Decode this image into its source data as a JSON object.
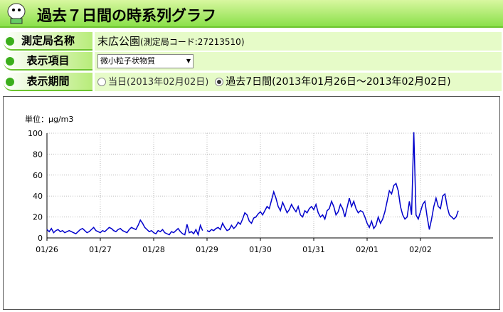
{
  "header": {
    "title": "過去７日間の時系列グラフ"
  },
  "form": {
    "station_label": "測定局名称",
    "station_name": "末広公園",
    "station_code": "(測定局コード:27213510)",
    "item_label": "表示項目",
    "item_value": "微小粒子状物質",
    "period_label": "表示期間",
    "period_today": "当日(2013年02月02日)",
    "period_week": "過去7日間(2013年01月26日～2013年02月02日)"
  },
  "chart_data": {
    "type": "line",
    "ylabel": "単位：μg/m3",
    "color": "#0000cc",
    "grid": true,
    "ylim": [
      0,
      100
    ],
    "yticks": [
      0,
      20,
      40,
      60,
      80,
      100
    ],
    "categories": [
      "01/26",
      null,
      null,
      null,
      null,
      null,
      null,
      null,
      null,
      null,
      null,
      null,
      null,
      null,
      null,
      null,
      null,
      null,
      null,
      null,
      null,
      null,
      null,
      null,
      "01/27",
      null,
      null,
      null,
      null,
      null,
      null,
      null,
      null,
      null,
      null,
      null,
      null,
      null,
      null,
      null,
      null,
      null,
      null,
      null,
      null,
      null,
      null,
      null,
      "01/28",
      null,
      null,
      null,
      null,
      null,
      null,
      null,
      null,
      null,
      null,
      null,
      null,
      null,
      null,
      null,
      null,
      null,
      null,
      null,
      null,
      null,
      null,
      null,
      "01/29",
      null,
      null,
      null,
      null,
      null,
      null,
      null,
      null,
      null,
      null,
      null,
      null,
      null,
      null,
      null,
      null,
      null,
      null,
      null,
      null,
      null,
      null,
      null,
      "01/30",
      null,
      null,
      null,
      null,
      null,
      null,
      null,
      null,
      null,
      null,
      null,
      null,
      null,
      null,
      null,
      null,
      null,
      null,
      null,
      null,
      null,
      null,
      null,
      "01/31",
      null,
      null,
      null,
      null,
      null,
      null,
      null,
      null,
      null,
      null,
      null,
      null,
      null,
      null,
      null,
      null,
      null,
      null,
      null,
      null,
      null,
      null,
      null,
      "02/01",
      null,
      null,
      null,
      null,
      null,
      null,
      null,
      null,
      null,
      null,
      null,
      null,
      null,
      null,
      null,
      null,
      null,
      null,
      null,
      null,
      null,
      null,
      null,
      "02/02",
      null,
      null,
      null,
      null,
      null,
      null,
      null,
      null,
      null,
      null,
      null,
      null,
      null,
      null,
      null,
      null,
      null
    ],
    "values": [
      8,
      6,
      9,
      5,
      7,
      8,
      6,
      7,
      5,
      6,
      7,
      6,
      5,
      4,
      6,
      8,
      9,
      7,
      5,
      6,
      8,
      10,
      7,
      6,
      5,
      7,
      6,
      8,
      10,
      9,
      7,
      6,
      8,
      9,
      7,
      6,
      5,
      8,
      10,
      9,
      8,
      12,
      17,
      14,
      10,
      8,
      6,
      7,
      5,
      4,
      7,
      6,
      8,
      5,
      4,
      3,
      6,
      5,
      7,
      9,
      6,
      4,
      3,
      13,
      5,
      6,
      4,
      8,
      3,
      12,
      7,
      null,
      7,
      6,
      8,
      7,
      9,
      10,
      8,
      14,
      10,
      7,
      8,
      12,
      9,
      11,
      15,
      13,
      18,
      24,
      22,
      16,
      14,
      19,
      20,
      23,
      25,
      22,
      26,
      30,
      28,
      36,
      44,
      38,
      30,
      26,
      34,
      29,
      24,
      27,
      32,
      28,
      25,
      30,
      22,
      20,
      26,
      24,
      28,
      30,
      27,
      32,
      24,
      20,
      22,
      18,
      26,
      28,
      35,
      30,
      22,
      25,
      32,
      28,
      20,
      29,
      38,
      30,
      35,
      28,
      24,
      26,
      25,
      20,
      14,
      10,
      16,
      9,
      12,
      20,
      14,
      18,
      25,
      35,
      45,
      42,
      50,
      52,
      45,
      30,
      22,
      18,
      20,
      35,
      22,
      101,
      22,
      18,
      25,
      32,
      35,
      20,
      8,
      18,
      30,
      38,
      30,
      28,
      40,
      42,
      30,
      22,
      20,
      18,
      20,
      26
    ]
  }
}
